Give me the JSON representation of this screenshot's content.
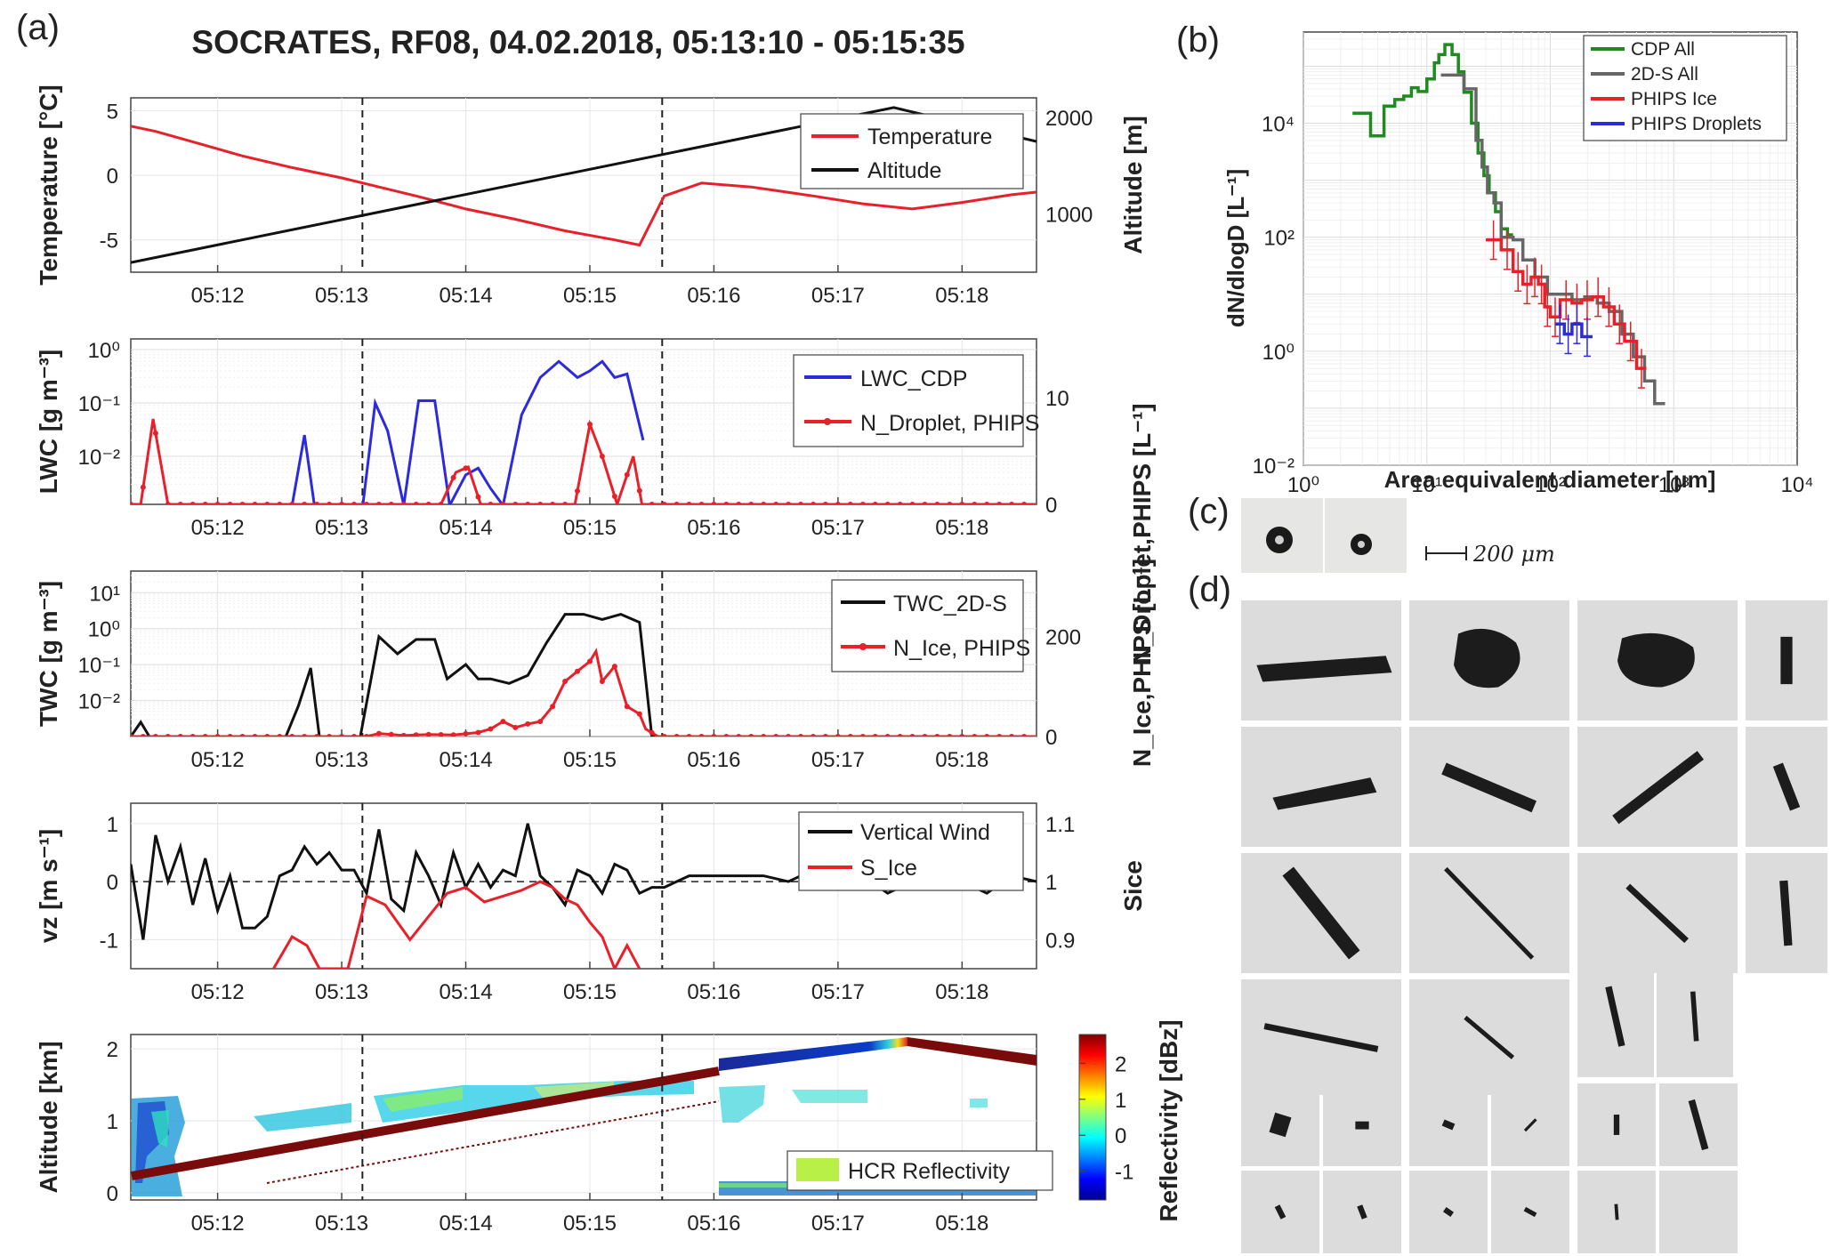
{
  "figure": {
    "title": "SOCRATES, RF08, 04.02.2018, 05:13:10 - 05:15:35",
    "letter_a": "(a)",
    "letter_b": "(b)",
    "letter_c": "(c)",
    "letter_d": "(d)",
    "scale_bar_label": "200 μm"
  },
  "time_axis": {
    "ticks": [
      "05:12",
      "05:13",
      "05:14",
      "05:15",
      "05:16",
      "05:17",
      "05:18"
    ],
    "tick_minutes": [
      12,
      13,
      14,
      15,
      16,
      17,
      18
    ],
    "xlim_minutes": [
      11.3,
      18.6
    ],
    "dashed_lines_minutes": [
      13.167,
      15.583
    ]
  },
  "chart_data": [
    {
      "type": "line",
      "panel": "temperature-altitude",
      "ylabel_left": "Temperature [°C]",
      "ylabel_right": "Altitude [m]",
      "ylim_left": [
        -7.5,
        6
      ],
      "yticks_left": [
        "5",
        "0",
        "-5"
      ],
      "ylim_right": [
        400,
        2200
      ],
      "yticks_right": [
        "2000",
        "1000"
      ],
      "series": [
        {
          "name": "Temperature",
          "color": "#e8202a",
          "axis": "left",
          "x": [
            11.3,
            11.5,
            11.8,
            12.2,
            12.6,
            13.0,
            13.3,
            13.6,
            14.0,
            14.4,
            14.8,
            15.2,
            15.4,
            15.5,
            15.6,
            15.9,
            16.3,
            16.8,
            17.2,
            17.6,
            18.0,
            18.4,
            18.6
          ],
          "y": [
            3.8,
            3.4,
            2.6,
            1.5,
            0.6,
            -0.2,
            -0.9,
            -1.6,
            -2.6,
            -3.4,
            -4.3,
            -5.0,
            -5.4,
            -3.5,
            -1.6,
            -0.6,
            -0.9,
            -1.6,
            -2.2,
            -2.6,
            -2.1,
            -1.5,
            -1.3
          ]
        },
        {
          "name": "Altitude",
          "color": "#111111",
          "axis": "right",
          "x": [
            11.3,
            17.45,
            18.6
          ],
          "y": [
            500,
            2100,
            1750
          ]
        }
      ],
      "legend": "top-right"
    },
    {
      "type": "line",
      "panel": "lwc",
      "ylabel_left": "LWC [g m⁻³]",
      "ylabel_right": "N_Droplet,PHIPS [L⁻¹]",
      "log_left": true,
      "ylim_left_exp": [
        -2.9,
        0.2
      ],
      "yticks_left": [
        "10⁰",
        "10⁻¹",
        "10⁻²"
      ],
      "ylim_right": [
        0,
        15.5
      ],
      "yticks_right": [
        "10",
        "0"
      ],
      "series": [
        {
          "name": "LWC_CDP",
          "color": "#2b2bdd",
          "axis": "left",
          "x": [
            12.6,
            12.7,
            12.78,
            13.17,
            13.27,
            13.37,
            13.5,
            13.62,
            13.75,
            13.87,
            14.0,
            14.1,
            14.2,
            14.3,
            14.45,
            14.6,
            14.75,
            14.9,
            15.0,
            15.1,
            15.2,
            15.3,
            15.43
          ],
          "y": [
            0.0012,
            0.025,
            0.0012,
            0.0012,
            0.1,
            0.03,
            0.0012,
            0.11,
            0.11,
            0.0012,
            0.0045,
            0.006,
            0.0025,
            0.0012,
            0.06,
            0.3,
            0.6,
            0.3,
            0.4,
            0.6,
            0.3,
            0.35,
            0.02
          ]
        },
        {
          "name": "N_Droplet, PHIPS",
          "color": "#e8202a",
          "axis": "right",
          "markers": true,
          "x": [
            11.3,
            11.38,
            11.48,
            11.6,
            13.8,
            13.92,
            14.02,
            14.12,
            14.75,
            14.88,
            15.0,
            15.1,
            15.22,
            15.35,
            15.42,
            15.55,
            18.6
          ],
          "y": [
            0,
            0,
            8,
            0,
            0,
            3,
            3.5,
            0,
            0,
            0,
            7.5,
            4.5,
            0,
            4.5,
            0,
            0,
            0
          ]
        }
      ],
      "legend": "top-right"
    },
    {
      "type": "line",
      "panel": "twc",
      "ylabel_left": "TWC [g m⁻³]",
      "ylabel_right": "N_Ice,PHIPS [L⁻¹]",
      "log_left": true,
      "ylim_left_exp": [
        -3.0,
        1.6
      ],
      "yticks_left": [
        "10¹",
        "10⁰",
        "10⁻¹",
        "10⁻²"
      ],
      "ylim_right": [
        0,
        330
      ],
      "yticks_right": [
        "200",
        "0"
      ],
      "series": [
        {
          "name": "TWC_2D-S",
          "color": "#111111",
          "axis": "left",
          "x": [
            11.3,
            11.38,
            11.45,
            12.55,
            12.65,
            12.75,
            12.82,
            13.15,
            13.3,
            13.45,
            13.6,
            13.75,
            13.85,
            14.0,
            14.1,
            14.2,
            14.35,
            14.5,
            14.65,
            14.8,
            14.95,
            15.1,
            15.25,
            15.4,
            15.5,
            15.6,
            18.6
          ],
          "y": [
            0.001,
            0.0025,
            0.001,
            0.001,
            0.007,
            0.08,
            0.001,
            0.001,
            0.6,
            0.2,
            0.5,
            0.5,
            0.04,
            0.1,
            0.04,
            0.04,
            0.03,
            0.05,
            0.4,
            2.5,
            2.5,
            1.8,
            2.5,
            1.5,
            0.001,
            0.001,
            0.001
          ]
        },
        {
          "name": "N_Ice, PHIPS",
          "color": "#e8202a",
          "axis": "right",
          "markers": true,
          "x": [
            11.3,
            13.2,
            13.3,
            13.5,
            13.7,
            13.9,
            14.1,
            14.2,
            14.3,
            14.4,
            14.5,
            14.6,
            14.7,
            14.8,
            14.9,
            15.0,
            15.05,
            15.1,
            15.2,
            15.3,
            15.4,
            15.45,
            15.55,
            18.6
          ],
          "y": [
            0,
            0,
            6,
            2,
            4,
            3,
            8,
            15,
            30,
            18,
            25,
            30,
            60,
            110,
            130,
            150,
            170,
            110,
            140,
            60,
            45,
            15,
            0,
            0
          ]
        }
      ],
      "legend": "top-right"
    },
    {
      "type": "line",
      "panel": "vertical-wind",
      "ylabel_left": "vz [m s⁻¹]",
      "ylabel_right": "Sice",
      "ylim_left": [
        -1.5,
        1.35
      ],
      "yticks_left": [
        "1",
        "0",
        "-1"
      ],
      "ylim_right": [
        0.85,
        1.135
      ],
      "yticks_right": [
        "1.1",
        "1",
        "0.9"
      ],
      "series": [
        {
          "name": "Vertical Wind",
          "color": "#111111",
          "axis": "left",
          "x": [
            11.3,
            11.4,
            11.5,
            11.6,
            11.7,
            11.8,
            11.9,
            12.0,
            12.1,
            12.2,
            12.3,
            12.4,
            12.5,
            12.6,
            12.7,
            12.8,
            12.9,
            13.0,
            13.1,
            13.2,
            13.3,
            13.4,
            13.5,
            13.6,
            13.7,
            13.8,
            13.9,
            14.0,
            14.1,
            14.2,
            14.3,
            14.4,
            14.5,
            14.6,
            14.7,
            14.8,
            14.9,
            15.0,
            15.1,
            15.2,
            15.3,
            15.4,
            15.5,
            15.6,
            15.8,
            16.0,
            16.2,
            16.4,
            16.6,
            16.8,
            17.0,
            17.2,
            17.4,
            17.6,
            17.8,
            18.0,
            18.2,
            18.4,
            18.6
          ],
          "y": [
            0.3,
            -1.0,
            0.8,
            0.0,
            0.6,
            -0.4,
            0.4,
            -0.5,
            0.1,
            -0.8,
            -0.8,
            -0.6,
            0.1,
            0.2,
            0.6,
            0.3,
            0.5,
            0.2,
            0.2,
            -0.2,
            0.9,
            -0.3,
            -0.5,
            0.5,
            0.1,
            -0.4,
            0.5,
            -0.1,
            0.3,
            -0.1,
            0.2,
            0.1,
            1.0,
            0.1,
            -0.1,
            -0.4,
            0.2,
            0.1,
            -0.2,
            0.3,
            0.2,
            -0.2,
            -0.1,
            -0.1,
            0.1,
            0.1,
            0.1,
            0.1,
            0.0,
            0.2,
            -0.1,
            0.1,
            -0.2,
            0.0,
            0.2,
            0.0,
            -0.2,
            0.1,
            0.0
          ]
        },
        {
          "name": "S_Ice",
          "color": "#e8202a",
          "axis": "right",
          "x": [
            12.45,
            12.6,
            12.72,
            12.82,
            13.05,
            13.2,
            13.35,
            13.55,
            13.7,
            13.85,
            14.0,
            14.15,
            14.3,
            14.45,
            14.6,
            14.7,
            14.8,
            14.9,
            15.0,
            15.1,
            15.2,
            15.3,
            15.4
          ],
          "y": [
            0.85,
            0.905,
            0.89,
            0.85,
            0.85,
            0.975,
            0.96,
            0.9,
            0.94,
            0.98,
            0.99,
            0.965,
            0.975,
            0.985,
            1.0,
            0.99,
            0.97,
            0.96,
            0.93,
            0.905,
            0.85,
            0.89,
            0.85
          ]
        }
      ],
      "legend": "top-right"
    },
    {
      "type": "heatmap",
      "panel": "hcr-reflectivity",
      "ylabel": "Altitude [km]",
      "ylim": [
        -0.1,
        2.2
      ],
      "yticks": [
        "2",
        "1",
        "0"
      ],
      "colorbar_label": "Reflectivity [dBz]",
      "colorbar_ticks": [
        "2",
        "1",
        "0",
        "-1"
      ],
      "colorbar_range": [
        -1.8,
        2.8
      ],
      "legend_entry": "HCR Reflectivity",
      "legend_color": "#b8f048"
    },
    {
      "type": "line",
      "panel": "size-distribution",
      "xlabel": "Area equivalent diameter [μm]",
      "ylabel": "dN/dlogD [L⁻¹]",
      "log_x": true,
      "log_y": true,
      "xlim_exp": [
        0,
        4
      ],
      "ylim_exp": [
        -2,
        5.6
      ],
      "xticks": [
        "10⁰",
        "10¹",
        "10²",
        "10³",
        "10⁴"
      ],
      "yticks": [
        "10⁻²",
        "10⁰",
        "10²",
        "10⁴"
      ],
      "series": [
        {
          "name": "CDP All",
          "color": "#1f8a1f",
          "x": [
            2.5,
            3.5,
            3.5,
            4.5,
            4.5,
            5.5,
            5.5,
            6.5,
            6.5,
            7.5,
            7.5,
            8.5,
            8.5,
            10,
            10,
            11.5,
            11.5,
            12.5,
            12.5,
            14,
            14,
            16,
            16,
            18,
            18,
            20,
            20,
            23,
            23,
            26,
            26,
            29,
            29,
            32,
            32,
            36,
            36,
            40,
            40,
            45,
            45,
            50
          ],
          "y": [
            15000,
            15000,
            6000,
            6000,
            20000,
            20000,
            26000,
            26000,
            30000,
            30000,
            42000,
            42000,
            36000,
            36000,
            60000,
            60000,
            115000,
            115000,
            160000,
            160000,
            240000,
            240000,
            160000,
            160000,
            80000,
            80000,
            35000,
            35000,
            10000,
            10000,
            3000,
            3000,
            1200,
            1200,
            600,
            600,
            280,
            280,
            140,
            140,
            110,
            110
          ]
        },
        {
          "name": "2D-S All",
          "color": "#666666",
          "x": [
            13,
            20,
            20,
            25,
            25,
            28,
            28,
            31,
            31,
            35,
            35,
            40,
            40,
            50,
            50,
            60,
            60,
            75,
            75,
            95,
            95,
            120,
            120,
            150,
            150,
            190,
            190,
            240,
            240,
            300,
            300,
            380,
            380,
            470,
            470,
            580,
            580,
            700,
            700,
            850
          ],
          "y": [
            70000,
            70000,
            40000,
            40000,
            5000,
            5000,
            1700,
            1700,
            600,
            600,
            400,
            400,
            100,
            100,
            90,
            90,
            40,
            40,
            20,
            20,
            10,
            10,
            10,
            10,
            8,
            8,
            9,
            9,
            7,
            7,
            5,
            5,
            2,
            2,
            0.8,
            0.8,
            0.3,
            0.3,
            0.12,
            0.12
          ]
        },
        {
          "name": "PHIPS Ice",
          "color": "#e8202a",
          "x": [
            30,
            40,
            40,
            50,
            50,
            60,
            60,
            70,
            70,
            80,
            80,
            90,
            90,
            100,
            100,
            120,
            120,
            150,
            150,
            180,
            180,
            220,
            220,
            270,
            270,
            330,
            330,
            400,
            400,
            500,
            500,
            600
          ],
          "y": [
            90,
            90,
            60,
            60,
            25,
            25,
            15,
            15,
            20,
            20,
            15,
            15,
            6,
            6,
            4,
            4,
            8,
            8,
            7,
            7,
            8,
            8,
            9,
            9,
            6,
            6,
            3,
            3,
            1.5,
            1.5,
            0.5,
            0.5
          ]
        },
        {
          "name": "PHIPS Droplets",
          "color": "#2b2bdd",
          "x": [
            110,
            130,
            130,
            150,
            150,
            180,
            180,
            220
          ],
          "y": [
            3,
            3,
            2,
            2,
            3,
            3,
            1.8,
            1.8
          ]
        }
      ],
      "legend": "top-right"
    }
  ]
}
